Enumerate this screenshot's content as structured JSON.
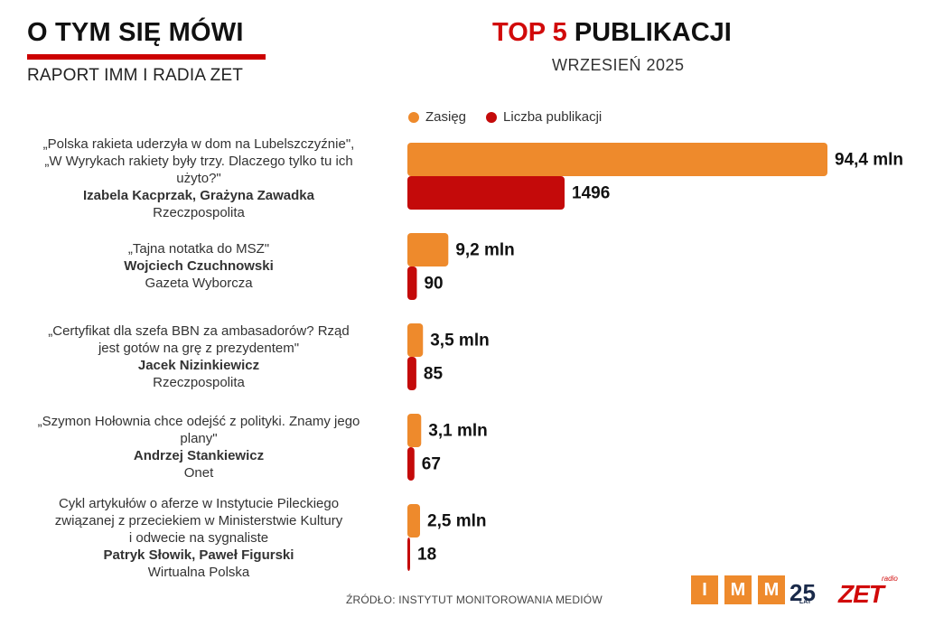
{
  "header": {
    "brand_title": "O TYM SIĘ MÓWI",
    "brand_subtitle": "RAPORT IMM I RADIA ZET",
    "chart_title_accent": "TOP 5",
    "chart_title_rest": "PUBLIKACJI",
    "chart_subtitle": "WRZESIEŃ 2025"
  },
  "legend": {
    "reach": "Zasięg",
    "count": "Liczba publikacji"
  },
  "colors": {
    "reach": "#ee8a2c",
    "count": "#c40a0a",
    "accent": "#d10a0a"
  },
  "items": [
    {
      "title_lines": [
        "„Polska rakieta uderzyła w dom na Lubelszczyźnie\",",
        "„W Wyrykach rakiety były trzy. Dlaczego tylko tu ich",
        "użyto?\""
      ],
      "author": "Izabela Kacprzak, Grażyna Zawadka",
      "outlet": "Rzeczpospolita",
      "reach_label": "94,4 mln",
      "count_label": "1496"
    },
    {
      "title_lines": [
        "„Tajna notatka do MSZ\""
      ],
      "author": "Wojciech Czuchnowski",
      "outlet": "Gazeta Wyborcza",
      "reach_label": "9,2 mln",
      "count_label": "90"
    },
    {
      "title_lines": [
        "„Certyfikat dla szefa BBN za ambasadorów? Rząd",
        "jest gotów na grę z prezydentem\""
      ],
      "author": "Jacek Nizinkiewicz",
      "outlet": "Rzeczpospolita",
      "reach_label": "3,5 mln",
      "count_label": "85"
    },
    {
      "title_lines": [
        "„Szymon Hołownia chce odejść z polityki. Znamy jego",
        "plany\""
      ],
      "author": "Andrzej Stankiewicz",
      "outlet": "Onet",
      "reach_label": "3,1 mln",
      "count_label": "67"
    },
    {
      "title_lines": [
        "Cykl artykułów o aferze w Instytucie Pileckiego",
        "związanej z przeciekiem w Ministerstwie Kultury",
        "i odwecie na sygnaliste"
      ],
      "author": "Patryk Słowik, Paweł Figurski",
      "outlet": "Wirtualna Polska",
      "reach_label": "2,5 mln",
      "count_label": "18"
    }
  ],
  "chart_data": {
    "type": "bar",
    "orientation": "horizontal",
    "title": "TOP 5 PUBLIKACJI",
    "subtitle": "WRZESIEŃ 2025",
    "categories": [
      "„Polska rakieta uderzyła w dom na Lubelszczyźnie\", „W Wyrykach rakiety były trzy. Dlaczego tylko tu ich użyto?\"",
      "„Tajna notatka do MSZ\"",
      "„Certyfikat dla szefa BBN za ambasadorów? Rząd jest gotów na grę z prezydentem\"",
      "„Szymon Hołownia chce odejść z polityki. Znamy jego plany\"",
      "Cykl artykułów o aferze w Instytucie Pileckiego związanej z przeciekiem w Ministerstwie Kultury i odwecie na sygnaliste"
    ],
    "series": [
      {
        "name": "Zasięg",
        "unit": "mln",
        "values": [
          94.4,
          9.2,
          3.5,
          3.1,
          2.5
        ]
      },
      {
        "name": "Liczba publikacji",
        "values": [
          1496,
          90,
          85,
          67,
          18
        ]
      }
    ],
    "legend_position": "top",
    "grid": false
  },
  "footer": {
    "source": "ŹRÓDŁO: INSTYTUT MONITOROWANIA MEDIÓW",
    "imm_letters": [
      "I",
      "M",
      "M"
    ],
    "imm_years": "25",
    "imm_lat": "LAT",
    "zet_small": "radio",
    "zet_word": "ZET"
  }
}
